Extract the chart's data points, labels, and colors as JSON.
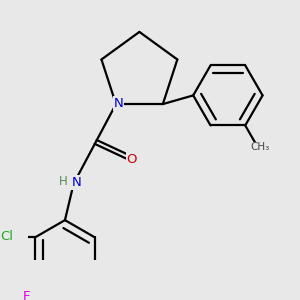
{
  "background_color": "#e8e8e8",
  "bond_color": "#000000",
  "atom_colors": {
    "N": "#0000cc",
    "O": "#cc0000",
    "Cl": "#22aa22",
    "F": "#dd00dd",
    "H": "#558855",
    "C": "#000000"
  },
  "bond_width": 1.6,
  "figsize": [
    3.0,
    3.0
  ],
  "dpi": 100
}
